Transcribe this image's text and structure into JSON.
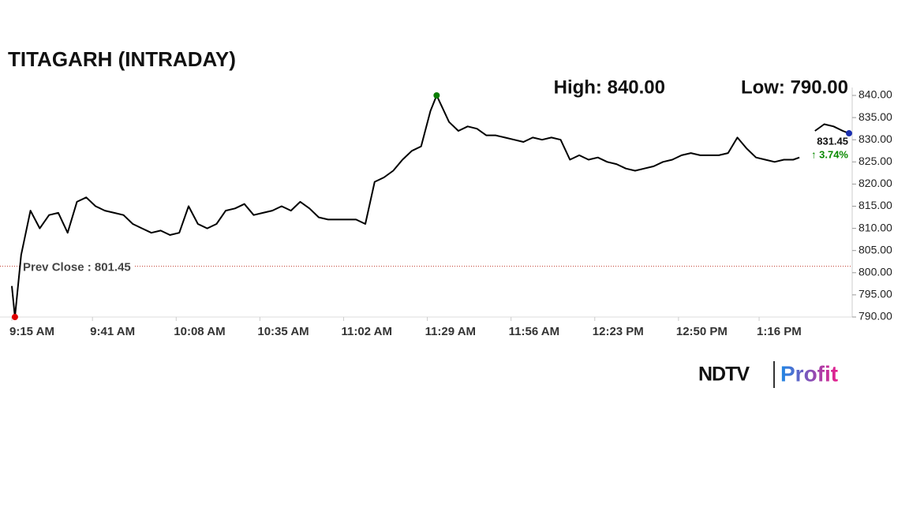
{
  "chart_data": {
    "type": "line",
    "title": "TITAGARH (INTRADAY)",
    "high_label": "High: 840.00",
    "low_label": "Low: 790.00",
    "prev_close": {
      "label": "Prev Close : 801.45",
      "value": 801.45,
      "color": "#c0392b"
    },
    "last_label": "831.45",
    "change_label": "↑ 3.74%",
    "x": [
      "9:15 AM",
      "9:16 AM",
      "9:18 AM",
      "9:21 AM",
      "9:24 AM",
      "9:27 AM",
      "9:30 AM",
      "9:33 AM",
      "9:36 AM",
      "9:39 AM",
      "9:42 AM",
      "9:45 AM",
      "9:48 AM",
      "9:51 AM",
      "9:54 AM",
      "9:57 AM",
      "10:00 AM",
      "10:03 AM",
      "10:06 AM",
      "10:09 AM",
      "10:12 AM",
      "10:15 AM",
      "10:18 AM",
      "10:21 AM",
      "10:24 AM",
      "10:27 AM",
      "10:30 AM",
      "10:33 AM",
      "10:36 AM",
      "10:39 AM",
      "10:42 AM",
      "10:45 AM",
      "10:48 AM",
      "10:51 AM",
      "10:54 AM",
      "10:57 AM",
      "11:00 AM",
      "11:03 AM",
      "11:06 AM",
      "11:09 AM",
      "11:12 AM",
      "11:15 AM",
      "11:18 AM",
      "11:21 AM",
      "11:24 AM",
      "11:27 AM",
      "11:30 AM",
      "11:32 AM",
      "11:36 AM",
      "11:39 AM",
      "11:42 AM",
      "11:45 AM",
      "11:48 AM",
      "11:51 AM",
      "11:54 AM",
      "11:57 AM",
      "12:00 PM",
      "12:03 PM",
      "12:06 PM",
      "12:09 PM",
      "12:12 PM",
      "12:15 PM",
      "12:18 PM",
      "12:21 PM",
      "12:24 PM",
      "12:27 PM",
      "12:30 PM",
      "12:33 PM",
      "12:36 PM",
      "12:39 PM",
      "12:42 PM",
      "12:45 PM",
      "12:48 PM",
      "12:51 PM",
      "12:54 PM",
      "12:57 PM",
      "1:00 PM",
      "1:03 PM",
      "1:06 PM",
      "1:09 PM",
      "1:12 PM",
      "1:15 PM",
      "1:18 PM",
      "1:21 PM",
      "1:24 PM",
      "1:27 PM",
      "1:29 PM",
      "1:31 PM",
      "1:34 PM",
      "1:37 PM",
      "1:40 PM",
      "1:43 PM",
      "1:45 PM"
    ],
    "series": [
      {
        "name": "TITAGARH",
        "color": "#000000",
        "values": [
          797,
          790,
          804,
          814,
          810,
          813,
          813.5,
          809,
          816,
          817,
          815,
          814,
          813.5,
          813,
          811,
          810,
          809,
          809.5,
          808.5,
          809,
          815,
          811,
          810,
          811,
          814,
          814.5,
          815.5,
          813,
          813.5,
          814,
          815,
          814,
          816,
          814.5,
          812.5,
          812,
          812,
          812,
          812,
          811,
          820.5,
          821.5,
          823,
          825.5,
          827.5,
          828.5,
          836.5,
          840,
          834,
          832,
          833,
          832.5,
          831,
          831,
          830.5,
          830,
          829.5,
          830.5,
          830,
          830.5,
          830,
          825.5,
          826.5,
          825.5,
          826,
          825,
          824.5,
          823.5,
          823,
          823.5,
          824,
          825,
          825.5,
          826.5,
          827,
          826.5,
          826.5,
          826.5,
          827,
          830.5,
          828,
          826,
          825.5,
          825,
          825.5,
          825.5,
          826,
          null,
          832,
          833.5,
          833,
          832,
          831.45
        ]
      }
    ],
    "high_color": "#0a7d00",
    "low_color": "#e00000",
    "last_color": "#1a2fb0",
    "xlim": [
      "9:15 AM",
      "1:45 PM"
    ],
    "xticks": [
      "9:15 AM",
      "9:41 AM",
      "10:08 AM",
      "10:35 AM",
      "11:02 AM",
      "11:29 AM",
      "11:56 AM",
      "12:23 PM",
      "12:50 PM",
      "1:16 PM"
    ],
    "ylim": [
      790,
      840
    ],
    "yticks": [
      {
        "value": 790,
        "label": "790.00"
      },
      {
        "value": 795,
        "label": "795.00"
      },
      {
        "value": 800,
        "label": "800.00"
      },
      {
        "value": 805,
        "label": "805.00"
      },
      {
        "value": 810,
        "label": "810.00"
      },
      {
        "value": 815,
        "label": "815.00"
      },
      {
        "value": 820,
        "label": "820.00"
      },
      {
        "value": 825,
        "label": "825.00"
      },
      {
        "value": 830,
        "label": "830.00"
      },
      {
        "value": 835,
        "label": "835.00"
      },
      {
        "value": 840,
        "label": "840.00"
      }
    ]
  },
  "logo": {
    "brand": "NDTV",
    "product": "Profit"
  }
}
